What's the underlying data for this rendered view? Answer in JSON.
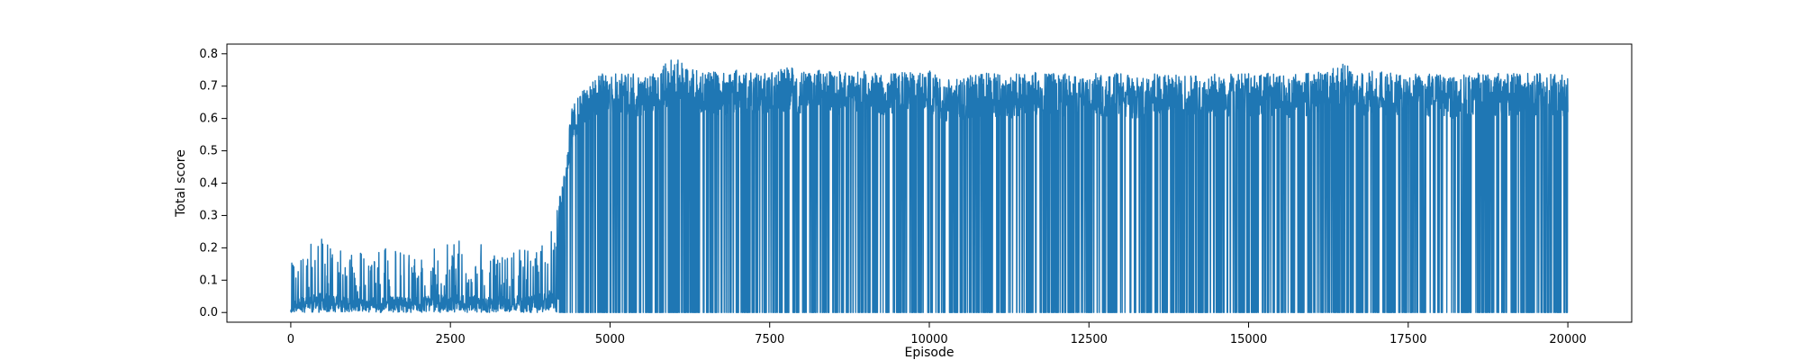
{
  "chart_data": {
    "type": "line",
    "title": "",
    "xlabel": "Episode",
    "ylabel": "Total score",
    "xlim": [
      -1000,
      21000
    ],
    "ylim": [
      -0.03,
      0.83
    ],
    "x_ticks": [
      0,
      2500,
      5000,
      7500,
      10000,
      12500,
      15000,
      17500,
      20000
    ],
    "y_ticks": [
      0.0,
      0.1,
      0.2,
      0.3,
      0.4,
      0.5,
      0.6,
      0.7,
      0.8
    ],
    "x_tick_labels": [
      "0",
      "2500",
      "5000",
      "7500",
      "10000",
      "12500",
      "15000",
      "17500",
      "20000"
    ],
    "y_tick_labels": [
      "0.0",
      "0.1",
      "0.2",
      "0.3",
      "0.4",
      "0.5",
      "0.6",
      "0.7",
      "0.8"
    ],
    "grid": false,
    "line_color": "#1f77b4",
    "series": [
      {
        "name": "",
        "bins": {
          "x": [
            0,
            500,
            1000,
            1500,
            2000,
            2500,
            3000,
            3500,
            4000,
            4250,
            4400,
            4600,
            4800,
            5000,
            5250,
            5500,
            5750,
            6000,
            6250,
            6500,
            6750,
            7000,
            7250,
            7500,
            7750,
            8000,
            8250,
            8500,
            8750,
            9000,
            9250,
            9500,
            9750,
            10000,
            10250,
            10400,
            10600,
            10750,
            11000,
            11250,
            11500,
            11750,
            12000,
            12250,
            12500,
            12750,
            13000,
            13250,
            13500,
            13750,
            14000,
            14250,
            14500,
            14750,
            15000,
            15250,
            15500,
            15600,
            15750,
            16000,
            16250,
            16500,
            16750,
            17000,
            17250,
            17500,
            17750,
            18000,
            18250,
            18500,
            18750,
            19000,
            19250,
            19500,
            19750,
            20000
          ],
          "max": [
            0.15,
            0.25,
            0.18,
            0.2,
            0.19,
            0.23,
            0.21,
            0.2,
            0.24,
            0.4,
            0.63,
            0.7,
            0.74,
            0.74,
            0.74,
            0.74,
            0.75,
            0.79,
            0.76,
            0.75,
            0.74,
            0.75,
            0.74,
            0.74,
            0.76,
            0.75,
            0.75,
            0.75,
            0.74,
            0.75,
            0.74,
            0.74,
            0.75,
            0.75,
            0.72,
            0.72,
            0.73,
            0.74,
            0.74,
            0.73,
            0.75,
            0.74,
            0.74,
            0.74,
            0.74,
            0.74,
            0.74,
            0.73,
            0.74,
            0.74,
            0.73,
            0.74,
            0.74,
            0.74,
            0.74,
            0.74,
            0.74,
            0.73,
            0.74,
            0.74,
            0.75,
            0.78,
            0.74,
            0.75,
            0.74,
            0.74,
            0.74,
            0.74,
            0.73,
            0.74,
            0.74,
            0.74,
            0.74,
            0.74,
            0.74,
            0.74
          ],
          "min": [
            0.0,
            0.0,
            0.0,
            0.0,
            0.0,
            0.0,
            0.0,
            0.0,
            0.0,
            0.0,
            0.0,
            0.0,
            0.0,
            0.0,
            0.0,
            0.0,
            0.0,
            0.0,
            0.0,
            0.0,
            0.0,
            0.0,
            0.0,
            0.0,
            0.0,
            0.0,
            0.0,
            0.0,
            0.0,
            0.0,
            0.0,
            0.0,
            0.0,
            0.0,
            0.0,
            0.0,
            0.0,
            0.0,
            0.0,
            0.0,
            0.0,
            0.0,
            0.0,
            0.0,
            0.0,
            0.0,
            0.0,
            0.0,
            0.0,
            0.0,
            0.0,
            0.0,
            0.0,
            0.0,
            0.0,
            0.0,
            0.0,
            0.0,
            0.0,
            0.0,
            0.0,
            0.0,
            0.0,
            0.0,
            0.0,
            0.0,
            0.0,
            0.0,
            0.0,
            0.0,
            0.0,
            0.0,
            0.0,
            0.0,
            0.0,
            0.0
          ]
        }
      }
    ]
  }
}
